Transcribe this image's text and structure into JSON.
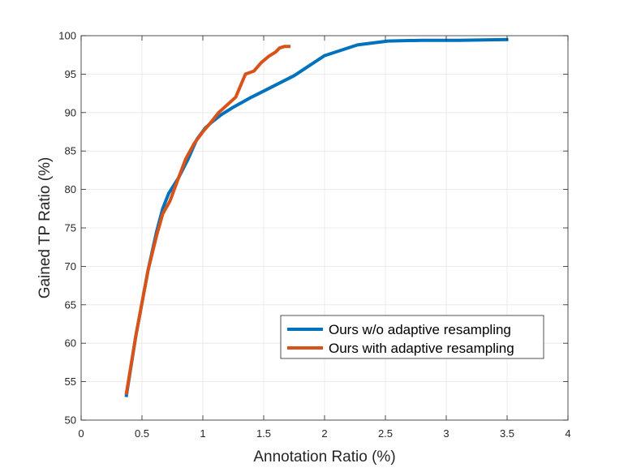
{
  "chart_data": {
    "type": "line",
    "title": "",
    "xlabel": "Annotation Ratio (%)",
    "ylabel": "Gained TP Ratio (%)",
    "xlim": [
      0,
      4
    ],
    "ylim": [
      50,
      100
    ],
    "xticks": [
      0,
      0.5,
      1,
      1.5,
      2,
      2.5,
      3,
      3.5,
      4
    ],
    "yticks": [
      50,
      55,
      60,
      65,
      70,
      75,
      80,
      85,
      90,
      95,
      100
    ],
    "xtick_labels": [
      "0",
      "0.5",
      "1",
      "1.5",
      "2",
      "2.5",
      "3",
      "3.5",
      "4"
    ],
    "ytick_labels": [
      "50",
      "55",
      "60",
      "65",
      "70",
      "75",
      "80",
      "85",
      "90",
      "95",
      "100"
    ],
    "grid": true,
    "legend_position": "bottom-right",
    "series": [
      {
        "name": "Ours w/o adaptive resampling",
        "color": "#0072BD",
        "x": [
          0.37,
          0.45,
          0.55,
          0.62,
          0.67,
          0.72,
          0.8,
          0.88,
          0.95,
          1.02,
          1.07,
          1.15,
          1.25,
          1.4,
          1.5,
          1.6,
          1.75,
          2.0,
          2.27,
          2.52,
          2.8,
          3.1,
          3.51
        ],
        "y": [
          53.0,
          61.0,
          69.5,
          74.5,
          77.5,
          79.5,
          81.5,
          84.0,
          86.5,
          88.0,
          88.7,
          89.7,
          90.7,
          92.0,
          92.8,
          93.6,
          94.8,
          97.4,
          98.8,
          99.3,
          99.4,
          99.4,
          99.5
        ]
      },
      {
        "name": "Ours with adaptive resampling",
        "color": "#D95319",
        "x": [
          0.37,
          0.45,
          0.55,
          0.62,
          0.67,
          0.73,
          0.8,
          0.86,
          0.93,
          1.0,
          1.07,
          1.13,
          1.2,
          1.27,
          1.35,
          1.42,
          1.48,
          1.54,
          1.6,
          1.63,
          1.67,
          1.72
        ],
        "y": [
          53.3,
          61.0,
          69.5,
          74.0,
          76.8,
          78.5,
          81.5,
          84.0,
          86.0,
          87.5,
          88.8,
          90.0,
          91.0,
          92.0,
          95.0,
          95.4,
          96.5,
          97.3,
          97.9,
          98.4,
          98.6,
          98.6
        ]
      }
    ]
  }
}
